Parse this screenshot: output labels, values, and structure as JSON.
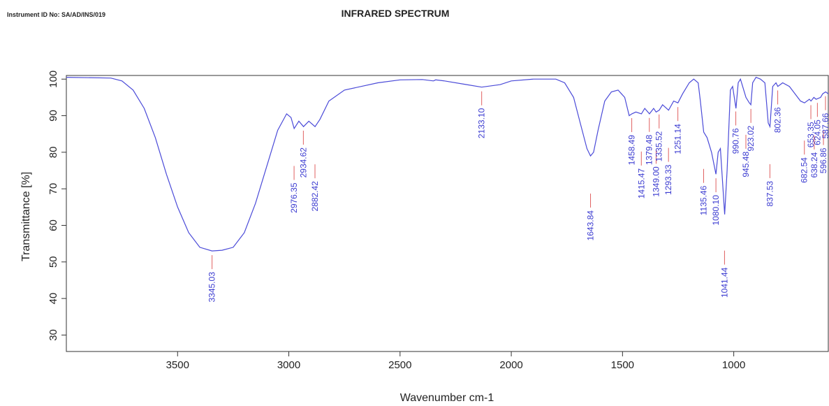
{
  "header": {
    "instrument": "Instrument ID No: SA/AD/INS/019"
  },
  "chart_data": {
    "type": "line",
    "title": "INFRARED SPECTRUM",
    "x_label": "Wavenumber cm-1",
    "y_label": "Transmittance [%]",
    "xlim": [
      4000,
      575
    ],
    "ylim": [
      25.5,
      101
    ],
    "xticks": [
      3500,
      3000,
      2500,
      2000,
      1500,
      1000
    ],
    "yticks": [
      30,
      40,
      50,
      60,
      70,
      80,
      90,
      100
    ],
    "grid": false,
    "color": "#4a4ad8",
    "peak_line_color": "#e06060",
    "peak_label_color": "#3a3ad0",
    "x": [
      4000,
      3800,
      3750,
      3700,
      3650,
      3600,
      3550,
      3500,
      3450,
      3400,
      3345,
      3300,
      3250,
      3200,
      3150,
      3100,
      3050,
      3010,
      2990,
      2976,
      2955,
      2934,
      2910,
      2882,
      2860,
      2820,
      2750,
      2600,
      2500,
      2400,
      2350,
      2340,
      2300,
      2200,
      2133,
      2050,
      2000,
      1900,
      1800,
      1760,
      1720,
      1690,
      1660,
      1644,
      1630,
      1610,
      1580,
      1550,
      1520,
      1490,
      1470,
      1458,
      1440,
      1415,
      1400,
      1379,
      1360,
      1349,
      1335,
      1320,
      1293,
      1270,
      1251,
      1230,
      1200,
      1180,
      1160,
      1150,
      1135,
      1120,
      1100,
      1080,
      1070,
      1060,
      1041,
      1030,
      1015,
      1005,
      990,
      980,
      970,
      945,
      930,
      923,
      915,
      900,
      880,
      860,
      845,
      837,
      825,
      810,
      802,
      780,
      750,
      700,
      682,
      660,
      653,
      640,
      630,
      610,
      600,
      587,
      575
    ],
    "values": [
      100.5,
      100.3,
      99.5,
      97,
      92,
      84,
      74,
      65,
      58,
      54,
      53,
      53.2,
      54,
      58,
      66,
      76,
      86,
      90.5,
      89.5,
      86.5,
      88.5,
      87,
      88.5,
      87,
      89,
      94,
      97,
      99,
      99.8,
      99.9,
      99.5,
      99.8,
      99.5,
      98.5,
      97.8,
      98.5,
      99.5,
      100,
      100,
      99,
      95,
      88,
      81,
      79,
      80,
      86,
      94,
      96.5,
      97,
      95,
      90,
      90.5,
      91,
      90.5,
      92,
      90.5,
      92,
      91,
      91.5,
      93,
      91.5,
      94,
      93.5,
      96,
      99,
      100,
      99,
      94,
      85.5,
      84,
      80,
      74,
      80,
      81,
      63,
      75,
      97,
      98,
      92,
      99,
      100,
      95,
      93.5,
      93,
      99,
      100.5,
      100,
      99,
      88,
      87,
      98,
      99,
      98,
      99,
      98,
      94,
      93.5,
      94.5,
      94,
      95,
      94.5,
      95,
      96,
      96.5,
      96
    ],
    "peaks": [
      {
        "value": 3345.03,
        "label": "3345.03"
      },
      {
        "value": 2976.35,
        "label": "2976.35"
      },
      {
        "value": 2934.62,
        "label": "2934.62"
      },
      {
        "value": 2882.42,
        "label": "2882.42"
      },
      {
        "value": 2133.1,
        "label": "2133.10"
      },
      {
        "value": 1643.84,
        "label": "1643.84"
      },
      {
        "value": 1458.49,
        "label": "1458.49"
      },
      {
        "value": 1415.47,
        "label": "1415.47"
      },
      {
        "value": 1379.48,
        "label": "1379.48"
      },
      {
        "value": 1349,
        "label": "1349.00"
      },
      {
        "value": 1335.52,
        "label": "1335.52"
      },
      {
        "value": 1293.33,
        "label": "1293.33"
      },
      {
        "value": 1251.14,
        "label": "1251.14"
      },
      {
        "value": 1135.46,
        "label": "1135.46"
      },
      {
        "value": 1080.1,
        "label": "1080.10"
      },
      {
        "value": 1041.44,
        "label": "1041.44"
      },
      {
        "value": 990.76,
        "label": "990.76"
      },
      {
        "value": 945.48,
        "label": "945.48"
      },
      {
        "value": 923.02,
        "label": "923.02"
      },
      {
        "value": 837.53,
        "label": "837.53"
      },
      {
        "value": 802.36,
        "label": "802.36"
      },
      {
        "value": 682.54,
        "label": "682.54"
      },
      {
        "value": 653.35,
        "label": "653.35"
      },
      {
        "value": 638.24,
        "label": "638.24"
      },
      {
        "value": 624.05,
        "label": "624.05"
      },
      {
        "value": 596.86,
        "label": "596.86"
      },
      {
        "value": 587.66,
        "label": "587.66"
      }
    ]
  }
}
